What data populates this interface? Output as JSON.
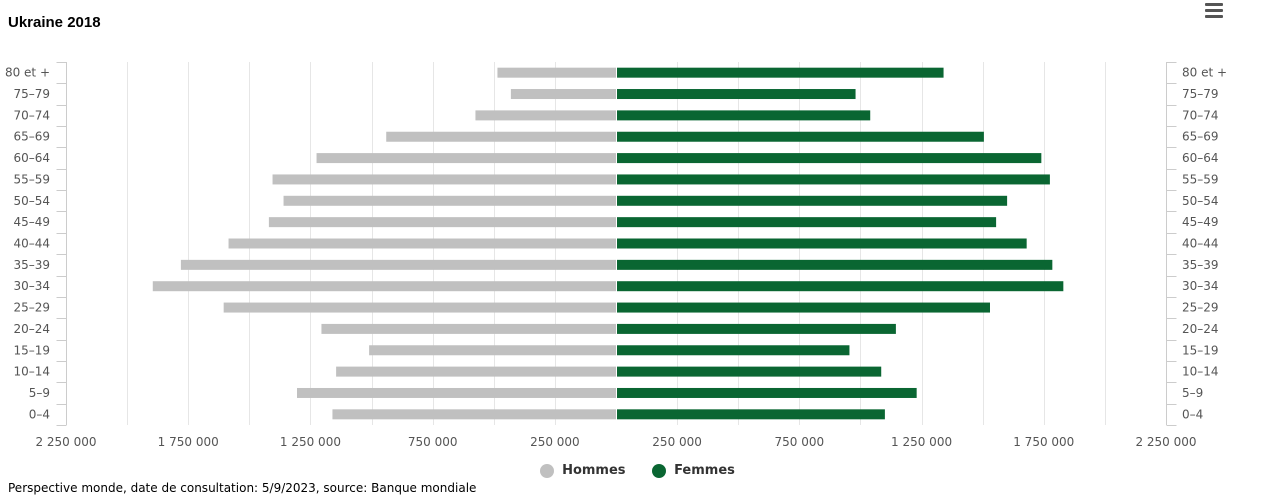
{
  "title": "Ukraine 2018",
  "source": "Perspective monde, date de consultation: 5/9/2023, source: Banque mondiale",
  "menu_icon": "hamburger-menu-icon",
  "colors": {
    "men": "#c0c0c0",
    "women": "#0a6632",
    "grid": "#e6e6e6",
    "axis": "#cccccc"
  },
  "chart_data": {
    "type": "bar",
    "orientation": "horizontal",
    "subtype": "population-pyramid",
    "title": "Ukraine 2018",
    "categories": [
      "80 et +",
      "75–79",
      "70–74",
      "65–69",
      "60–64",
      "55–59",
      "50–54",
      "45–49",
      "40–44",
      "35–39",
      "30–34",
      "25–29",
      "20–24",
      "15–19",
      "10–14",
      "5–9",
      "0–4"
    ],
    "series": [
      {
        "name": "Hommes",
        "color": "#c0c0c0",
        "values": [
          485000,
          430000,
          575000,
          940000,
          1225000,
          1405000,
          1360000,
          1420000,
          1585000,
          1780000,
          1895000,
          1605000,
          1205000,
          1010000,
          1145000,
          1305000,
          1160000
        ]
      },
      {
        "name": "Femmes",
        "color": "#0a6632",
        "values": [
          1340000,
          980000,
          1040000,
          1505000,
          1740000,
          1775000,
          1600000,
          1555000,
          1680000,
          1785000,
          1830000,
          1530000,
          1145000,
          955000,
          1085000,
          1230000,
          1100000
        ]
      }
    ],
    "xlim": [
      -2250000,
      2250000
    ],
    "xticks": [
      "2 250 000",
      "1 750 000",
      "1 250 000",
      "750 000",
      "250 000",
      "250 000",
      "750 000",
      "1 250 000",
      "1 750 000",
      "2 250 000"
    ],
    "xtick_values": [
      -2250000,
      -1750000,
      -1250000,
      -750000,
      -250000,
      250000,
      750000,
      1250000,
      1750000,
      2250000
    ],
    "grid": true,
    "legend_position": "bottom-center"
  }
}
